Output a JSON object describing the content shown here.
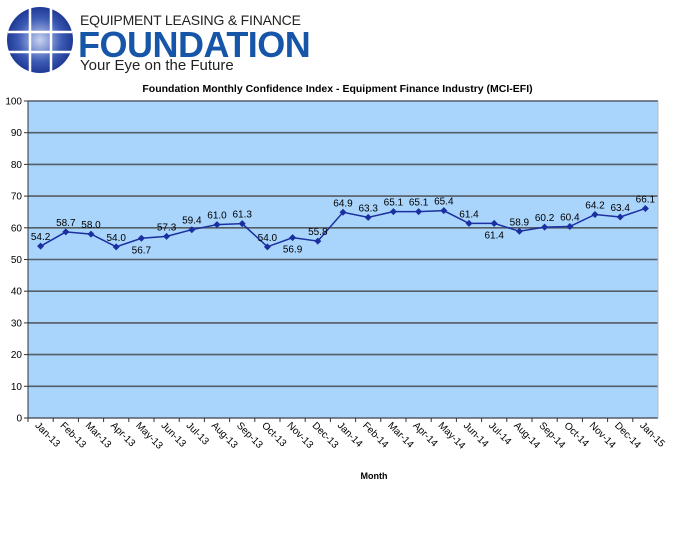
{
  "logo": {
    "line1": "EQUIPMENT LEASING & FINANCE",
    "line2": "FOUNDATION",
    "tagline": "Your Eye on the Future",
    "color": "#1655a8"
  },
  "chart_data": {
    "type": "line",
    "title": "Foundation Monthly Confidence Index - Equipment Finance Industry (MCI-EFI)",
    "xlabel": "Month",
    "ylabel": "",
    "ylim": [
      0,
      100
    ],
    "yticks": [
      0,
      10,
      20,
      30,
      40,
      50,
      60,
      70,
      80,
      90,
      100
    ],
    "grid": true,
    "legend": "none",
    "background_color": "#a9d4fc",
    "line_color": "#1a2fa0",
    "categories": [
      "Jan-13",
      "Feb-13",
      "Mar-13",
      "Apr-13",
      "May-13",
      "Jun-13",
      "Jul-13",
      "Aug-13",
      "Sep-13",
      "Oct-13",
      "Nov-13",
      "Dec-13",
      "Jan-14",
      "Feb-14",
      "Mar-14",
      "Apr-14",
      "May-14",
      "Jun-14",
      "Jul-14",
      "Aug-14",
      "Sep-14",
      "Oct-14",
      "Nov-14",
      "Dec-14",
      "Jan-15"
    ],
    "values": [
      54.2,
      58.7,
      58.0,
      54.0,
      56.7,
      57.3,
      59.4,
      61.0,
      61.3,
      54.0,
      56.9,
      55.8,
      64.9,
      63.3,
      65.1,
      65.1,
      65.4,
      61.4,
      61.4,
      58.9,
      60.2,
      60.4,
      64.2,
      63.4,
      66.1
    ],
    "data_labels": [
      "54.2",
      "58.7",
      "58.0",
      "54.0",
      "56.7",
      "57.3",
      "59.4",
      "61.0",
      "61.3",
      "54.0",
      "56.9",
      "55.8",
      "64.9",
      "63.3",
      "65.1",
      "65.1",
      "65.4",
      "61.4",
      "61.4",
      "58.9",
      "60.2",
      "60.4",
      "64.2",
      "63.4",
      "66.1"
    ]
  }
}
